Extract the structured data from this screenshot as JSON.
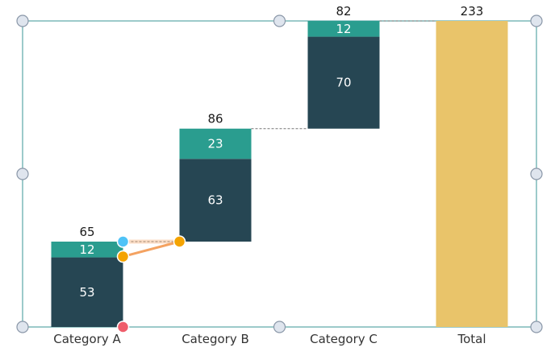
{
  "chart_data": {
    "type": "bar",
    "subtype": "stacked-waterfall",
    "title": "",
    "xlabel": "",
    "ylabel": "",
    "ylim": [
      0,
      233
    ],
    "grid": false,
    "legend": "none",
    "categories": [
      "Category A",
      "Category B",
      "Category C",
      "Total"
    ],
    "columns": [
      {
        "category": "Category A",
        "base": 0,
        "segments": [
          {
            "value": 53,
            "color": "#264653"
          },
          {
            "value": 12,
            "color": "#2a9d8f"
          }
        ],
        "total": 65,
        "total_label": "65"
      },
      {
        "category": "Category B",
        "base": 65,
        "segments": [
          {
            "value": 63,
            "color": "#264653"
          },
          {
            "value": 23,
            "color": "#2a9d8f"
          }
        ],
        "total": 86,
        "total_label": "86"
      },
      {
        "category": "Category C",
        "base": 151,
        "segments": [
          {
            "value": 70,
            "color": "#264653"
          },
          {
            "value": 12,
            "color": "#2a9d8f"
          }
        ],
        "total": 82,
        "total_label": "82"
      },
      {
        "category": "Total",
        "base": 0,
        "segments": [
          {
            "value": 233,
            "color": "#e9c46a"
          }
        ],
        "total": 233,
        "total_label": "233"
      }
    ],
    "colors": {
      "series_dark": "#264653",
      "series_teal": "#2a9d8f",
      "total": "#e9c46a",
      "frame": "#5aa7a7",
      "handle_fill": "#dfe5ee",
      "handle_stroke": "#8a97a8",
      "selection_handle_blue": "#4fc3f7",
      "selection_handle_orange": "#f4a300",
      "selection_handle_red": "#ef5d6b",
      "selection_line": "#f4a261"
    }
  }
}
